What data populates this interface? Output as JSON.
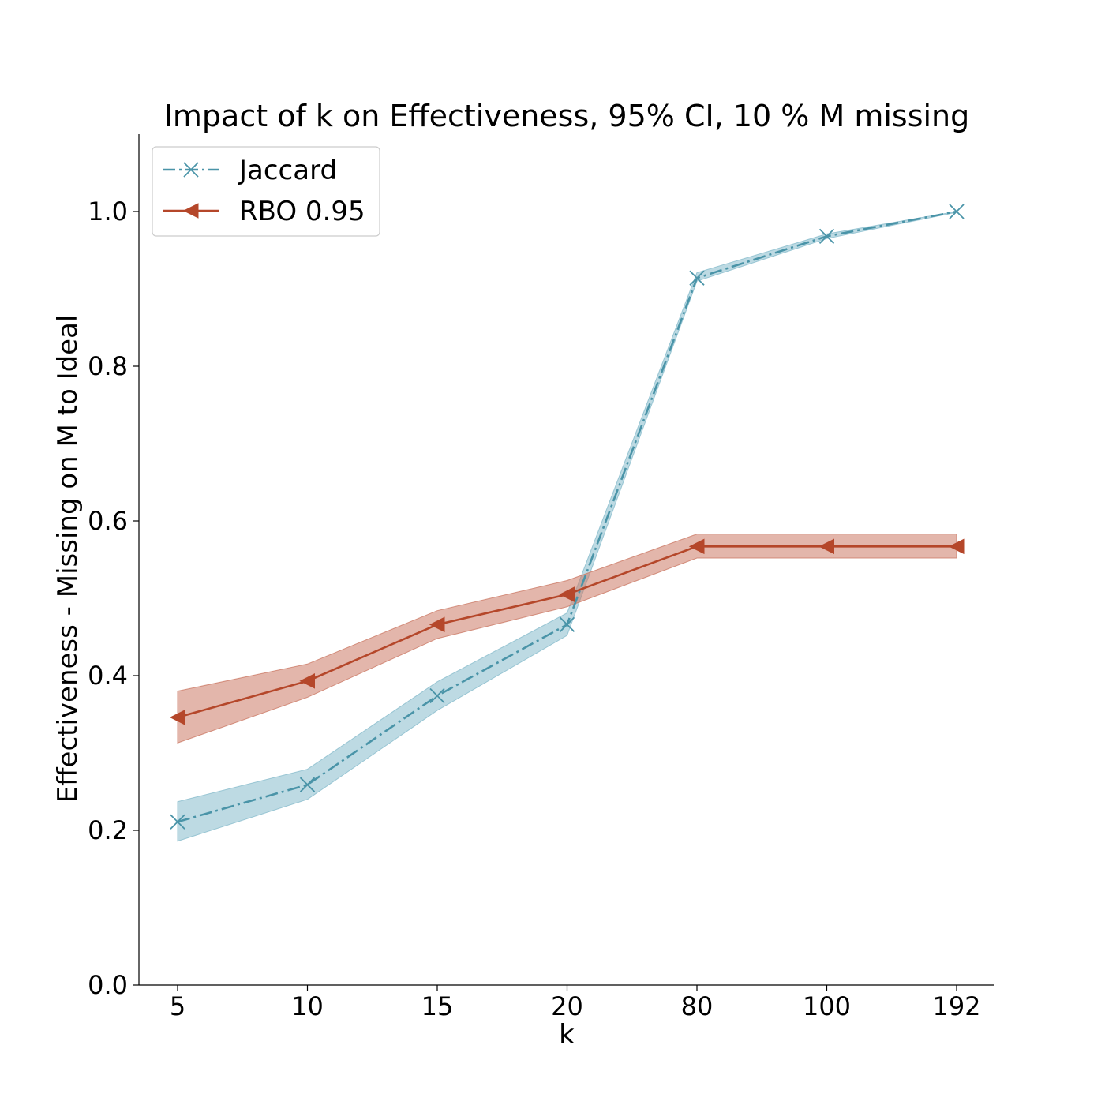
{
  "chart_data": {
    "type": "line",
    "title": "Impact of k on Effectiveness, 95% CI, 10 % M missing",
    "xlabel": "k",
    "ylabel": "Effectiveness - Missing on M to Ideal",
    "categories": [
      "5",
      "10",
      "15",
      "20",
      "80",
      "100",
      "192"
    ],
    "ylim": [
      0,
      1.1
    ],
    "yticks": [
      "0.0",
      "0.2",
      "0.4",
      "0.6",
      "0.8",
      "1.0"
    ],
    "grid": false,
    "legend_position": "top-left",
    "series": [
      {
        "name": "Jaccard",
        "color": "#4a94a8",
        "band_color": "#87bccc",
        "line_style": "dash-dot",
        "marker": "x",
        "values": [
          0.211,
          0.259,
          0.374,
          0.466,
          0.914,
          0.968,
          1.0
        ],
        "ci_lower": [
          0.186,
          0.24,
          0.355,
          0.452,
          0.91,
          0.965,
          0.999
        ],
        "ci_upper": [
          0.237,
          0.279,
          0.392,
          0.481,
          0.921,
          0.971,
          1.0
        ]
      },
      {
        "name": "RBO 0.95",
        "color": "#b5472a",
        "band_color": "#cc7a66",
        "line_style": "solid",
        "marker": "triangle-left",
        "values": [
          0.346,
          0.393,
          0.466,
          0.505,
          0.567,
          0.567,
          0.567
        ],
        "ci_lower": [
          0.313,
          0.372,
          0.448,
          0.489,
          0.552,
          0.552,
          0.552
        ],
        "ci_upper": [
          0.38,
          0.415,
          0.484,
          0.523,
          0.583,
          0.583,
          0.583
        ]
      }
    ]
  }
}
